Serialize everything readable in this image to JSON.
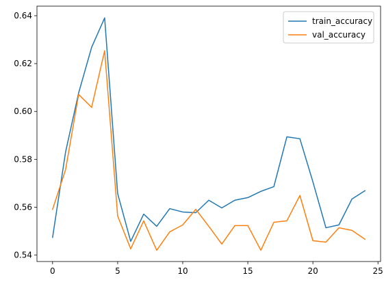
{
  "chart_data": {
    "type": "line",
    "title": "",
    "xlabel": "",
    "ylabel": "",
    "xlim": [
      -1.2,
      25.2
    ],
    "ylim": [
      0.5373,
      0.644
    ],
    "xticks": [
      0,
      5,
      10,
      15,
      20,
      25
    ],
    "xtick_labels": [
      "0",
      "5",
      "10",
      "15",
      "20",
      "25"
    ],
    "yticks": [
      0.54,
      0.56,
      0.58,
      0.6,
      0.62,
      0.64
    ],
    "ytick_labels": [
      "0.54",
      "0.56",
      "0.58",
      "0.60",
      "0.62",
      "0.64"
    ],
    "grid": false,
    "legend_position": "upper right",
    "x": [
      0,
      1,
      2,
      3,
      4,
      5,
      6,
      7,
      8,
      9,
      10,
      11,
      12,
      13,
      14,
      15,
      16,
      17,
      18,
      19,
      20,
      21,
      22,
      23,
      24
    ],
    "series": [
      {
        "name": "train_accuracy",
        "color": "#1f77b4",
        "values": [
          0.5474,
          0.5831,
          0.6077,
          0.6268,
          0.6391,
          0.5657,
          0.5457,
          0.5571,
          0.552,
          0.5594,
          0.558,
          0.5577,
          0.5629,
          0.5597,
          0.5629,
          0.564,
          0.5666,
          0.5686,
          0.5894,
          0.5886,
          0.5706,
          0.5514,
          0.5526,
          0.5634,
          0.5669
        ]
      },
      {
        "name": "val_accuracy",
        "color": "#ff7f0e",
        "values": [
          0.5591,
          0.5757,
          0.6071,
          0.6017,
          0.6254,
          0.5563,
          0.5426,
          0.5543,
          0.542,
          0.5497,
          0.5526,
          0.5591,
          0.552,
          0.5446,
          0.5523,
          0.5523,
          0.542,
          0.5537,
          0.5543,
          0.5649,
          0.546,
          0.5454,
          0.5514,
          0.5503,
          0.5466
        ]
      }
    ]
  }
}
